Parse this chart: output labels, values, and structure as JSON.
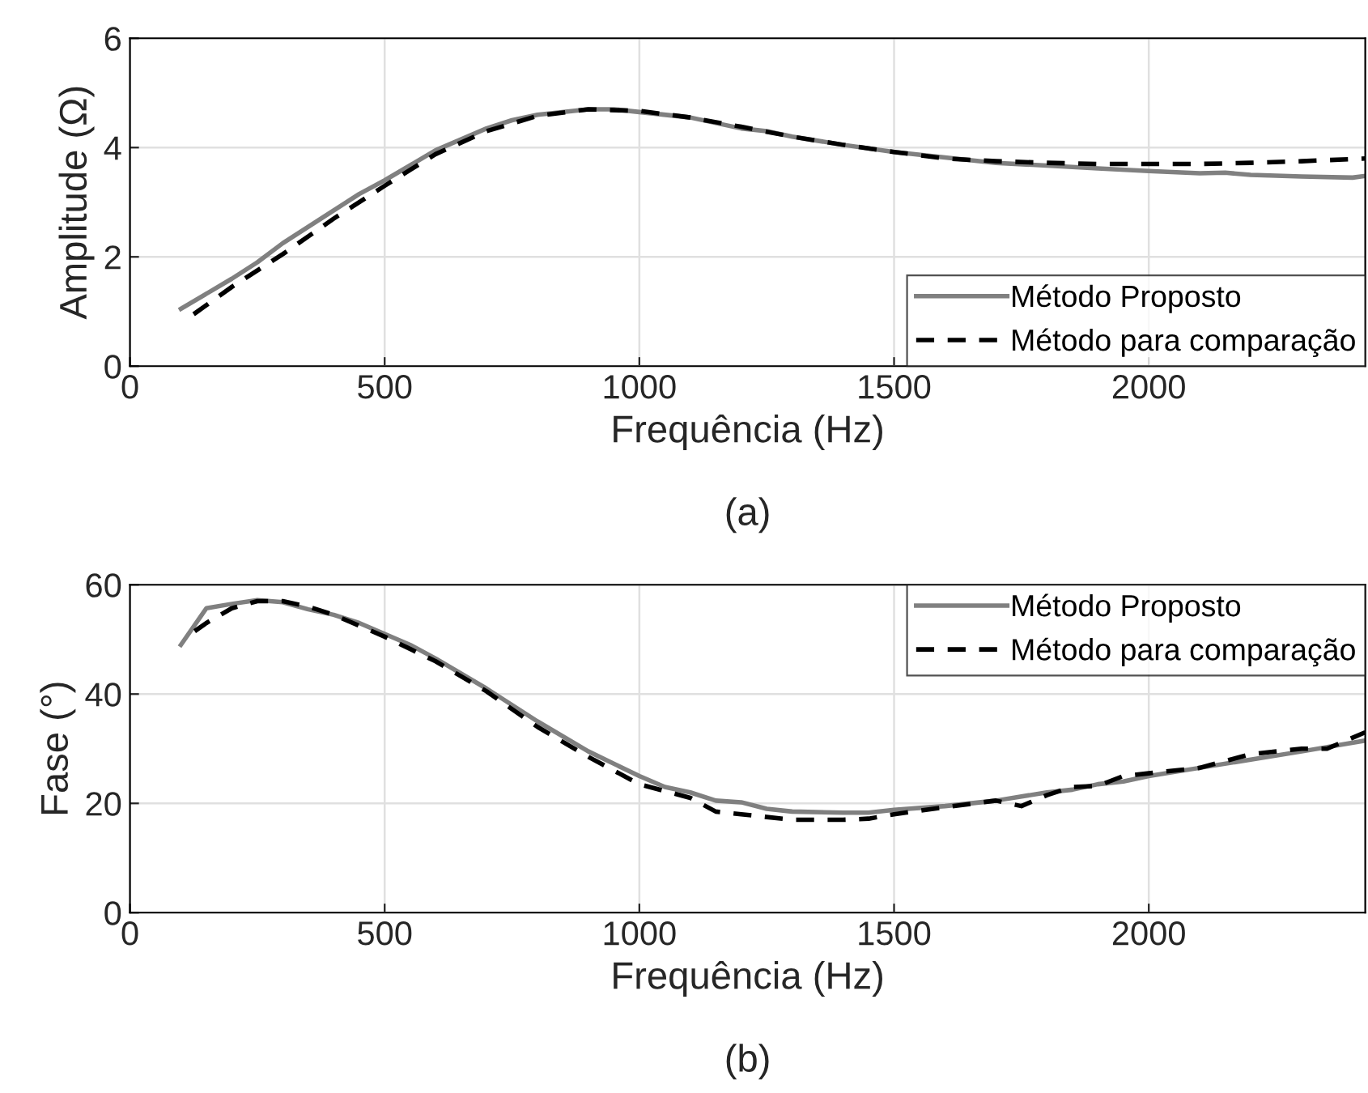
{
  "chart_data": [
    {
      "type": "line",
      "xlabel": "Frequência (Hz)",
      "ylabel": "Amplitude (Ω)",
      "annotations": [
        "(a)"
      ],
      "xlim": [
        0,
        2425
      ],
      "xticks": [
        0,
        500,
        1000,
        1500,
        2000
      ],
      "ylim": [
        0,
        6
      ],
      "yticks": [
        0,
        2,
        4,
        6
      ],
      "grid": true,
      "legend": "bottom right",
      "series": [
        {
          "name": "Método Proposto",
          "color": "#808080",
          "line_style": "solid",
          "x": [
            100,
            200,
            250,
            300,
            400,
            450,
            500,
            600,
            700,
            750,
            800,
            900,
            950,
            1000,
            1100,
            1200,
            1250,
            1300,
            1400,
            1500,
            1600,
            1700,
            1800,
            1900,
            2000,
            2100,
            2150,
            2200,
            2300,
            2400,
            2425
          ],
          "values": [
            1.05,
            1.6,
            1.9,
            2.25,
            2.85,
            3.15,
            3.4,
            3.95,
            4.35,
            4.5,
            4.6,
            4.7,
            4.7,
            4.65,
            4.55,
            4.35,
            4.3,
            4.2,
            4.05,
            3.92,
            3.82,
            3.72,
            3.67,
            3.62,
            3.57,
            3.53,
            3.54,
            3.5,
            3.47,
            3.45,
            3.48
          ]
        },
        {
          "name": "Método para comparação",
          "color": "#000000",
          "line_style": "dashed",
          "x": [
            125,
            200,
            300,
            400,
            500,
            600,
            700,
            800,
            900,
            1000,
            1100,
            1200,
            1300,
            1400,
            1500,
            1600,
            1700,
            1800,
            1900,
            2000,
            2100,
            2200,
            2300,
            2425
          ],
          "values": [
            0.95,
            1.45,
            2.05,
            2.7,
            3.3,
            3.88,
            4.3,
            4.58,
            4.7,
            4.67,
            4.55,
            4.38,
            4.2,
            4.05,
            3.92,
            3.8,
            3.75,
            3.72,
            3.7,
            3.7,
            3.7,
            3.72,
            3.75,
            3.8
          ]
        }
      ]
    },
    {
      "type": "line",
      "xlabel": "Frequência (Hz)",
      "ylabel": "Fase (°)",
      "annotations": [
        "(b)"
      ],
      "xlim": [
        0,
        2425
      ],
      "xticks": [
        0,
        500,
        1000,
        1500,
        2000
      ],
      "ylim": [
        0,
        60
      ],
      "yticks": [
        0,
        20,
        40,
        60
      ],
      "grid": true,
      "legend": "top right",
      "series": [
        {
          "name": "Método Proposto",
          "color": "#808080",
          "line_style": "solid",
          "x": [
            100,
            150,
            200,
            250,
            300,
            350,
            400,
            450,
            500,
            550,
            600,
            700,
            800,
            900,
            1000,
            1050,
            1100,
            1150,
            1200,
            1250,
            1300,
            1400,
            1450,
            1500,
            1600,
            1700,
            1800,
            1850,
            1900,
            1950,
            2000,
            2100,
            2200,
            2300,
            2425
          ],
          "values": [
            49,
            55.7,
            56.5,
            57.2,
            56.8,
            55.5,
            54.5,
            53,
            51,
            49,
            46.5,
            41,
            35,
            29.5,
            25,
            23,
            22,
            20.5,
            20.2,
            19,
            18.5,
            18.3,
            18.3,
            18.8,
            19.5,
            20.5,
            22,
            22.5,
            23.5,
            24,
            25,
            26.5,
            28,
            29.5,
            31.5
          ]
        },
        {
          "name": "Método para comparação",
          "color": "#000000",
          "line_style": "dashed",
          "x": [
            127,
            150,
            200,
            250,
            300,
            350,
            400,
            500,
            600,
            700,
            800,
            900,
            1000,
            1100,
            1150,
            1200,
            1300,
            1400,
            1450,
            1500,
            1600,
            1700,
            1750,
            1800,
            1850,
            1900,
            1950,
            2000,
            2100,
            2200,
            2300,
            2350,
            2425
          ],
          "values": [
            51.5,
            53,
            55.7,
            57,
            57,
            56,
            54.5,
            50.5,
            46,
            40.5,
            34,
            28.5,
            23.5,
            21,
            18.5,
            18,
            17,
            17,
            17.2,
            18,
            19.3,
            20.5,
            19.5,
            21.5,
            23,
            23.2,
            25,
            25.5,
            26.5,
            29,
            30,
            30,
            33
          ]
        }
      ]
    }
  ]
}
